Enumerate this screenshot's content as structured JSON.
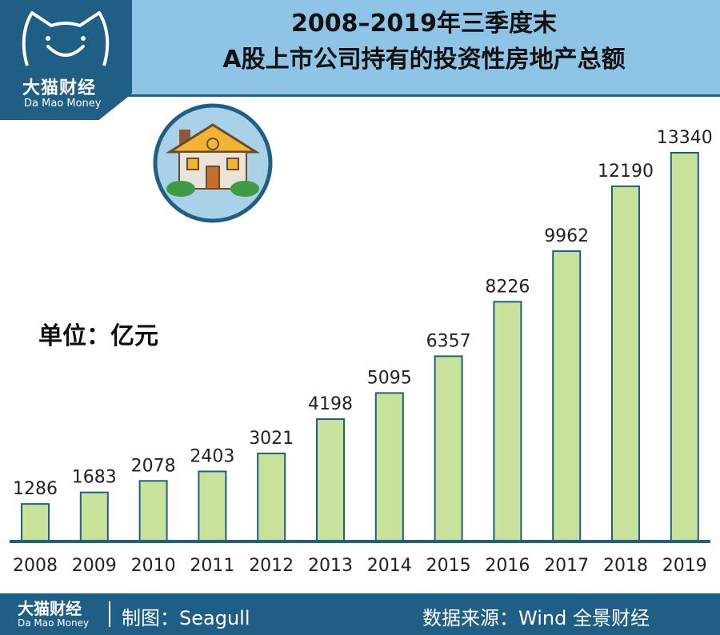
{
  "brand": {
    "name": "大猫财经",
    "name_en": "Da Mao Money"
  },
  "title": {
    "line1": "2008–2019年三季度末",
    "line2": "A股上市公司持有的投资性房地产总额"
  },
  "unit_label": "单位：亿元",
  "colors": {
    "brand_blue": "#1f5f86",
    "header_light_blue": "#8ec5e6",
    "bar_fill": "#c9e29b",
    "bar_stroke": "#1f5f86",
    "badge_bg": "#a9d1e8"
  },
  "chart_data": {
    "type": "bar",
    "categories": [
      "2008",
      "2009",
      "2010",
      "2011",
      "2012",
      "2013",
      "2014",
      "2015",
      "2016",
      "2017",
      "2018",
      "2019"
    ],
    "values": [
      1286,
      1683,
      2078,
      2403,
      3021,
      4198,
      5095,
      6357,
      8226,
      9962,
      12190,
      13340
    ],
    "data_labels": [
      "1286",
      "1683",
      "2078",
      "2403",
      "3021",
      "4198",
      "5095",
      "6357",
      "8226",
      "9962",
      "12190",
      "13340"
    ],
    "title": "2008–2019年三季度末 A股上市公司持有的投资性房地产总额",
    "xlabel": "",
    "ylabel": "",
    "unit": "亿元",
    "ylim": [
      0,
      13340
    ],
    "grid": false,
    "legend": "none"
  },
  "footer": {
    "brand": "大猫财经",
    "brand_en": "Da Mao Money",
    "maker": "制图：Seagull",
    "source": "数据来源：Wind  全景财经"
  },
  "icons": {
    "logo": "cat-face-icon",
    "badge": "house-icon"
  }
}
